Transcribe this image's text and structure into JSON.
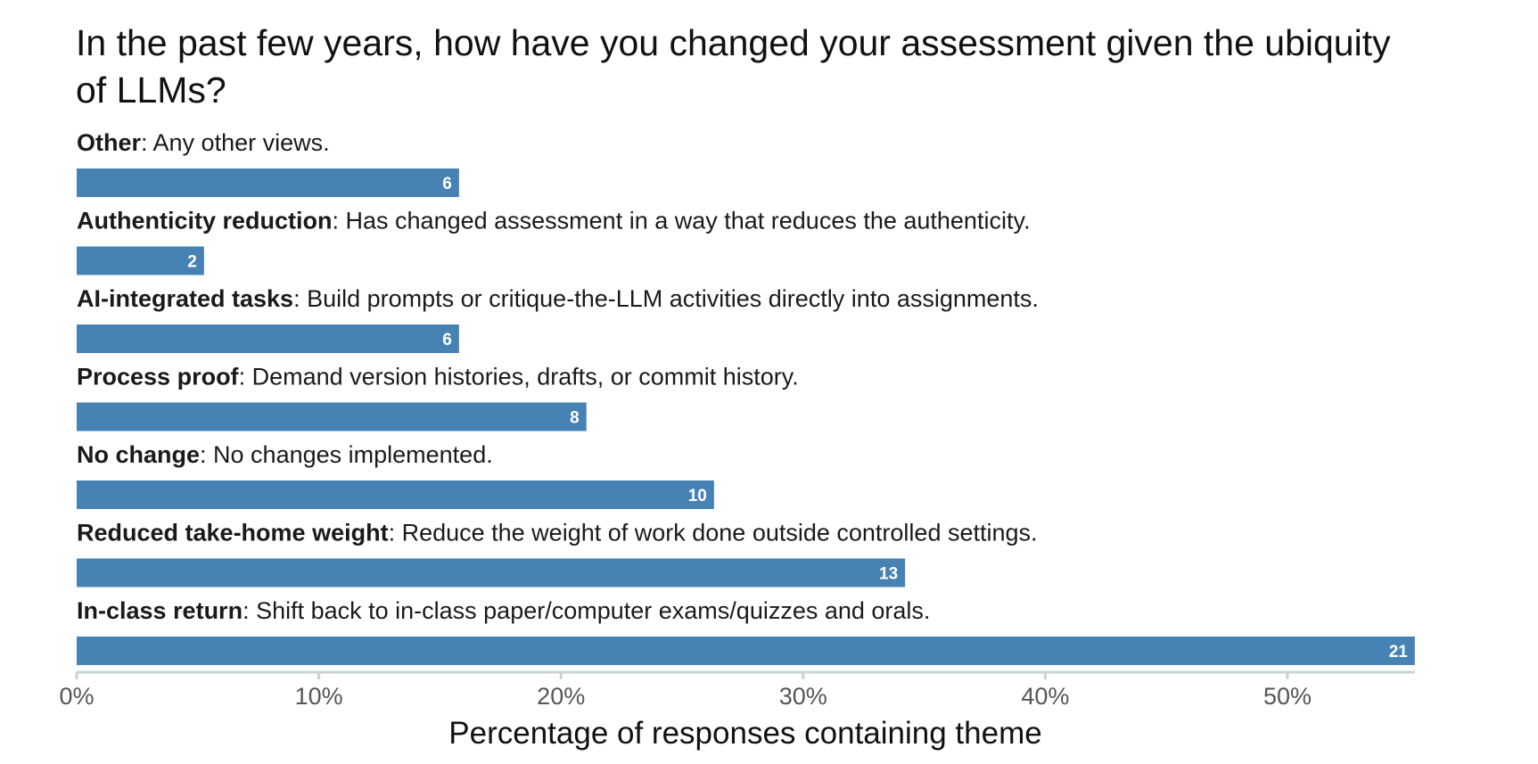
{
  "chart_data": {
    "type": "bar",
    "orientation": "horizontal",
    "title": "In the past few years, how have you changed your assessment given the ubiquity of LLMs?",
    "xlabel": "Percentage of responses containing theme",
    "ylabel": "",
    "xlim": [
      0,
      55.26
    ],
    "x_ticks": [
      0,
      10,
      20,
      30,
      40,
      50
    ],
    "x_tick_labels": [
      "0%",
      "10%",
      "20%",
      "30%",
      "40%",
      "50%"
    ],
    "grid": false,
    "bar_color": "#4682b4",
    "categories": [
      {
        "name": "Other",
        "description": ": Any other views.",
        "count": 6,
        "percent": 15.79
      },
      {
        "name": "Authenticity reduction",
        "description": ": Has changed assessment in a way that reduces the authenticity.",
        "count": 2,
        "percent": 5.26
      },
      {
        "name": "AI-integrated tasks",
        "description": ": Build prompts or critique-the-LLM activities directly into assignments.",
        "count": 6,
        "percent": 15.79
      },
      {
        "name": "Process proof",
        "description": ": Demand version histories, drafts, or commit history.",
        "count": 8,
        "percent": 21.05
      },
      {
        "name": "No change",
        "description": ": No changes implemented.",
        "count": 10,
        "percent": 26.32
      },
      {
        "name": "Reduced take-home weight",
        "description": ": Reduce the weight of work done outside controlled settings.",
        "count": 13,
        "percent": 34.21
      },
      {
        "name": "In-class return",
        "description": ": Shift back to in-class paper/computer exams/quizzes and orals.",
        "count": 21,
        "percent": 55.26
      }
    ]
  }
}
